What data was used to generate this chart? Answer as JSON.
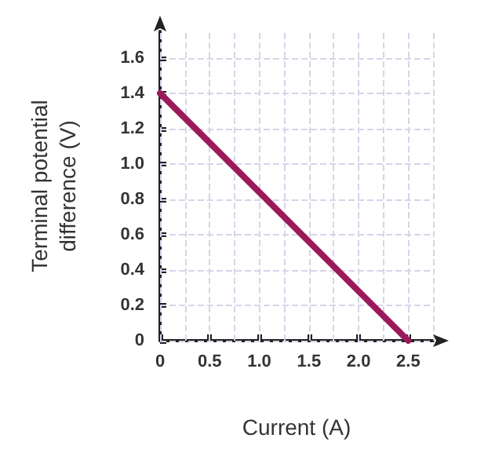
{
  "chart_data": {
    "type": "line",
    "xlabel": "Current (A)",
    "ylabel": "Terminal potential\ndifference (V)",
    "x": [
      0,
      2.5
    ],
    "series": [
      {
        "color": "#9b1b5a",
        "values": [
          1.4,
          0
        ]
      }
    ],
    "xlim": [
      0,
      2.75
    ],
    "ylim": [
      0,
      1.75
    ],
    "xticks": [
      0,
      {
        "value": 0.25,
        "label": null
      },
      0.5,
      {
        "value": 0.75,
        "label": null
      },
      {
        "value": 1,
        "label": "1.0"
      },
      {
        "value": 1.25,
        "label": null
      },
      1.5,
      {
        "value": 1.75,
        "label": null
      },
      {
        "value": 2,
        "label": "2.0"
      },
      {
        "value": 2.25,
        "label": null
      },
      2.5,
      {
        "value": 2.75,
        "label": null
      }
    ],
    "yticks": [
      0,
      0.2,
      0.4,
      0.6,
      0.8,
      {
        "value": 1,
        "label": "1.0"
      },
      1.2,
      1.4,
      1.6
    ],
    "grid": true,
    "marker": "none",
    "line_style": "solid"
  }
}
